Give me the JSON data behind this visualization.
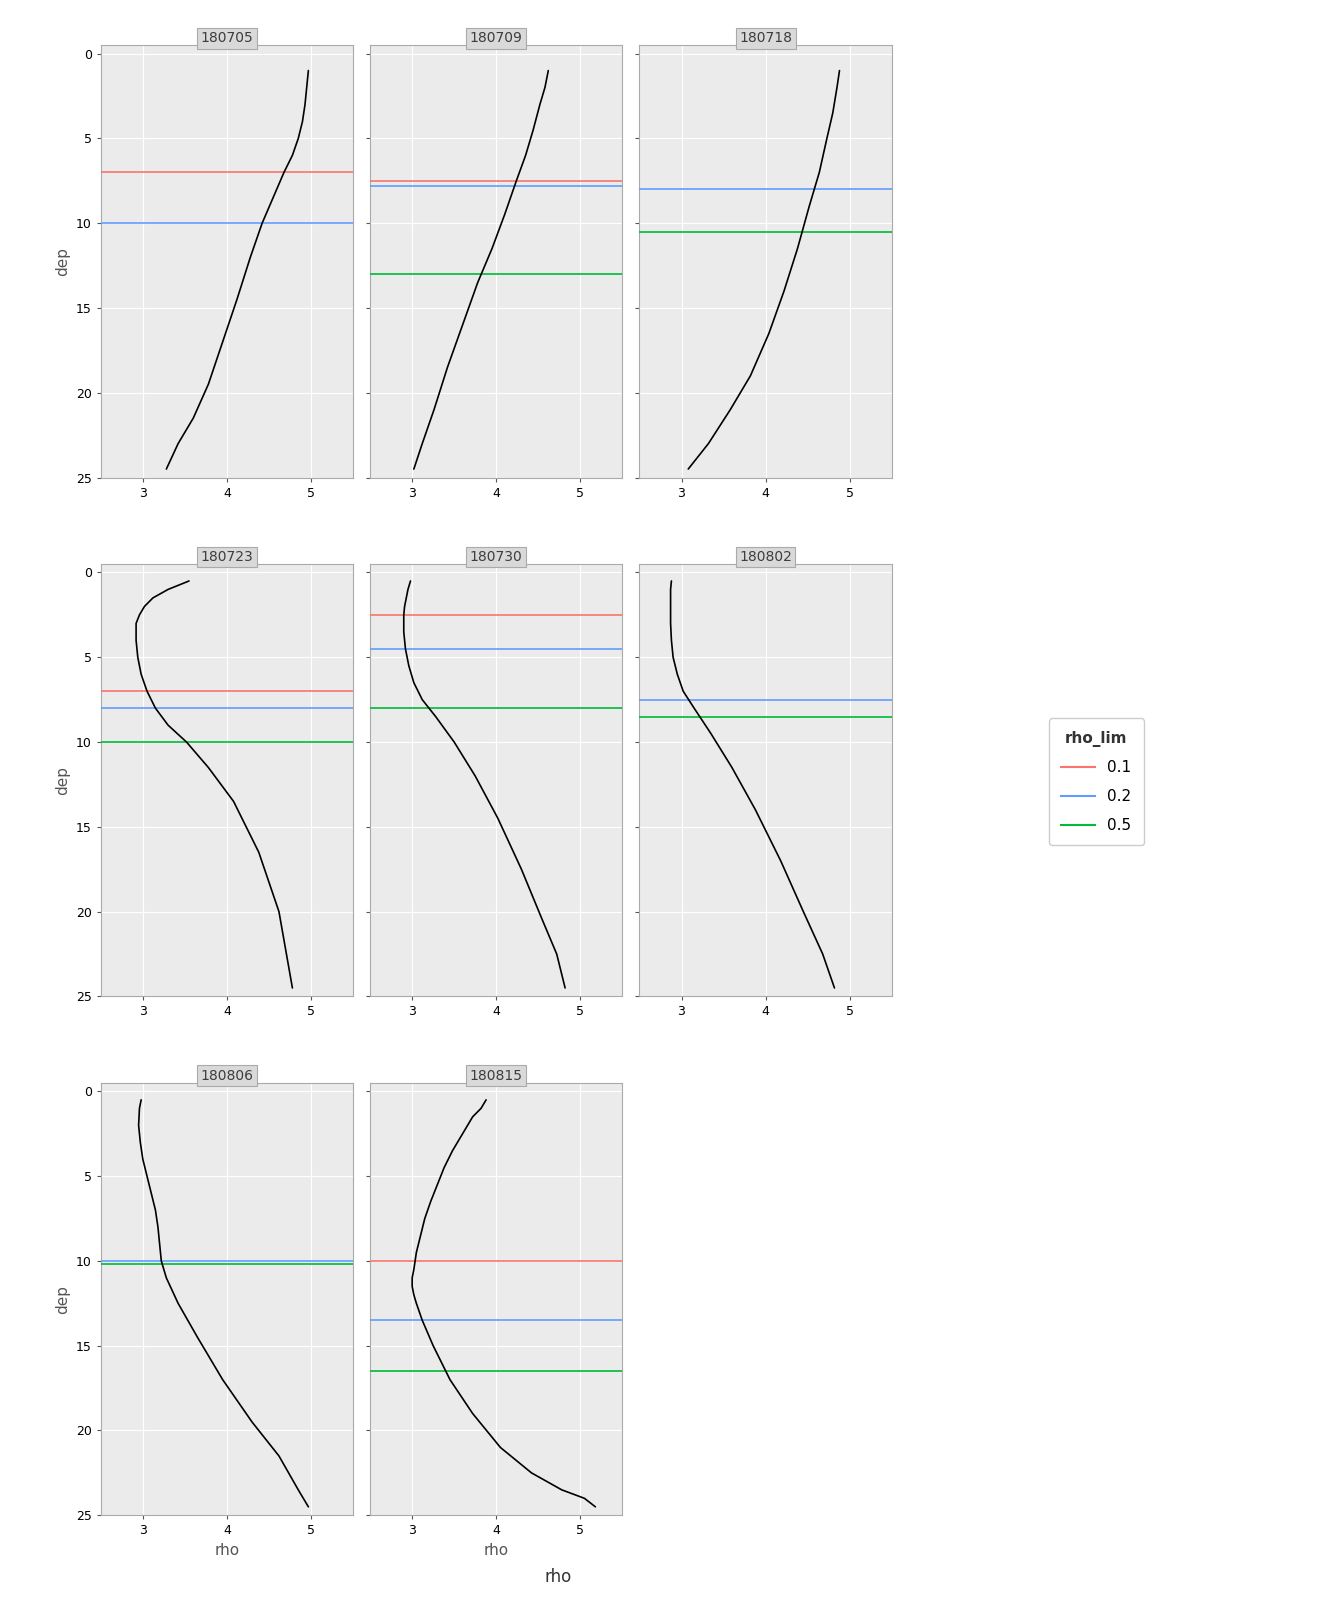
{
  "panels": [
    {
      "id": "180705",
      "mld_red": 7.0,
      "mld_blue": 10.0,
      "mld_green": null,
      "profile_rho": [
        4.97,
        4.95,
        4.93,
        4.9,
        4.85,
        4.78,
        4.68,
        4.55,
        4.42,
        4.28,
        4.12,
        3.95,
        3.78,
        3.6,
        3.42,
        3.28
      ],
      "profile_dep": [
        1.0,
        2.0,
        3.0,
        4.0,
        5.0,
        6.0,
        7.0,
        8.5,
        10.0,
        12.0,
        14.5,
        17.0,
        19.5,
        21.5,
        23.0,
        24.5
      ]
    },
    {
      "id": "180709",
      "mld_red": 7.5,
      "mld_blue": 7.8,
      "mld_green": 13.0,
      "profile_rho": [
        4.62,
        4.58,
        4.52,
        4.44,
        4.35,
        4.24,
        4.1,
        3.95,
        3.78,
        3.6,
        3.42,
        3.26,
        3.12,
        3.02
      ],
      "profile_dep": [
        1.0,
        2.0,
        3.0,
        4.5,
        6.0,
        7.5,
        9.5,
        11.5,
        13.5,
        16.0,
        18.5,
        21.0,
        23.0,
        24.5
      ]
    },
    {
      "id": "180718",
      "mld_red": null,
      "mld_blue": 8.0,
      "mld_green": 10.5,
      "profile_rho": [
        4.88,
        4.85,
        4.8,
        4.73,
        4.64,
        4.52,
        4.38,
        4.22,
        4.04,
        3.82,
        3.58,
        3.32,
        3.08
      ],
      "profile_dep": [
        1.0,
        2.0,
        3.5,
        5.0,
        7.0,
        9.0,
        11.5,
        14.0,
        16.5,
        19.0,
        21.0,
        23.0,
        24.5
      ]
    },
    {
      "id": "180723",
      "mld_red": 7.0,
      "mld_blue": 8.0,
      "mld_green": 10.0,
      "profile_rho": [
        3.55,
        3.3,
        3.12,
        3.02,
        2.96,
        2.92,
        2.92,
        2.94,
        2.98,
        3.05,
        3.15,
        3.3,
        3.52,
        3.78,
        4.08,
        4.38,
        4.62,
        4.78
      ],
      "profile_dep": [
        0.5,
        1.0,
        1.5,
        2.0,
        2.5,
        3.0,
        4.0,
        5.0,
        6.0,
        7.0,
        8.0,
        9.0,
        10.0,
        11.5,
        13.5,
        16.5,
        20.0,
        24.5
      ]
    },
    {
      "id": "180730",
      "mld_red": 2.5,
      "mld_blue": 4.5,
      "mld_green": 8.0,
      "profile_rho": [
        2.98,
        2.95,
        2.93,
        2.91,
        2.9,
        2.9,
        2.92,
        2.96,
        3.02,
        3.12,
        3.28,
        3.5,
        3.75,
        4.02,
        4.3,
        4.55,
        4.72,
        4.82
      ],
      "profile_dep": [
        0.5,
        1.0,
        1.5,
        2.0,
        2.5,
        3.5,
        4.5,
        5.5,
        6.5,
        7.5,
        8.5,
        10.0,
        12.0,
        14.5,
        17.5,
        20.5,
        22.5,
        24.5
      ]
    },
    {
      "id": "180802",
      "mld_red": null,
      "mld_blue": 7.5,
      "mld_green": 8.5,
      "profile_rho": [
        2.88,
        2.87,
        2.87,
        2.87,
        2.88,
        2.9,
        2.95,
        3.02,
        3.15,
        3.35,
        3.6,
        3.88,
        4.18,
        4.45,
        4.68,
        4.82
      ],
      "profile_dep": [
        0.5,
        1.0,
        2.0,
        3.0,
        4.0,
        5.0,
        6.0,
        7.0,
        8.0,
        9.5,
        11.5,
        14.0,
        17.0,
        20.0,
        22.5,
        24.5
      ]
    },
    {
      "id": "180806",
      "mld_red": null,
      "mld_blue": 10.0,
      "mld_green": 10.2,
      "profile_rho": [
        2.98,
        2.96,
        2.95,
        2.97,
        3.0,
        3.05,
        3.1,
        3.15,
        3.18,
        3.2,
        3.22,
        3.28,
        3.42,
        3.65,
        3.95,
        4.3,
        4.62,
        4.85,
        4.97
      ],
      "profile_dep": [
        0.5,
        1.0,
        2.0,
        3.0,
        4.0,
        5.0,
        6.0,
        7.0,
        8.0,
        9.0,
        10.0,
        11.0,
        12.5,
        14.5,
        17.0,
        19.5,
        21.5,
        23.5,
        24.5
      ]
    },
    {
      "id": "180815",
      "mld_red": 10.0,
      "mld_blue": 13.5,
      "mld_green": 16.5,
      "profile_rho": [
        3.88,
        3.82,
        3.72,
        3.6,
        3.48,
        3.38,
        3.3,
        3.22,
        3.15,
        3.1,
        3.05,
        3.02,
        3.0,
        3.0,
        3.02,
        3.05,
        3.12,
        3.25,
        3.45,
        3.72,
        4.05,
        4.42,
        4.78,
        5.05,
        5.18
      ],
      "profile_dep": [
        0.5,
        1.0,
        1.5,
        2.5,
        3.5,
        4.5,
        5.5,
        6.5,
        7.5,
        8.5,
        9.5,
        10.5,
        11.0,
        11.5,
        12.0,
        12.5,
        13.5,
        15.0,
        17.0,
        19.0,
        21.0,
        22.5,
        23.5,
        24.0,
        24.5
      ]
    }
  ],
  "xlim": [
    2.5,
    5.5
  ],
  "ylim": [
    25,
    -0.5
  ],
  "xticks": [
    3,
    4,
    5
  ],
  "yticks": [
    0,
    5,
    10,
    15,
    20,
    25
  ],
  "xlabel": "rho",
  "ylabel": "dep",
  "line_colors": {
    "red": "#F8766D",
    "blue": "#619CFF",
    "green": "#00BA38"
  },
  "line_labels": {
    "red": "0.1",
    "blue": "0.2",
    "green": "0.5"
  },
  "legend_title": "rho_lim",
  "profile_color": "#000000",
  "strip_bg": "#D9D9D9",
  "strip_text_color": "#3D3D3D",
  "grid_color": "#FFFFFF",
  "plot_bg": "#EBEBEB",
  "outer_bg": "#FFFFFF",
  "title_fontsize": 10,
  "label_fontsize": 11,
  "tick_fontsize": 9,
  "panel_border_color": "#AAAAAA"
}
